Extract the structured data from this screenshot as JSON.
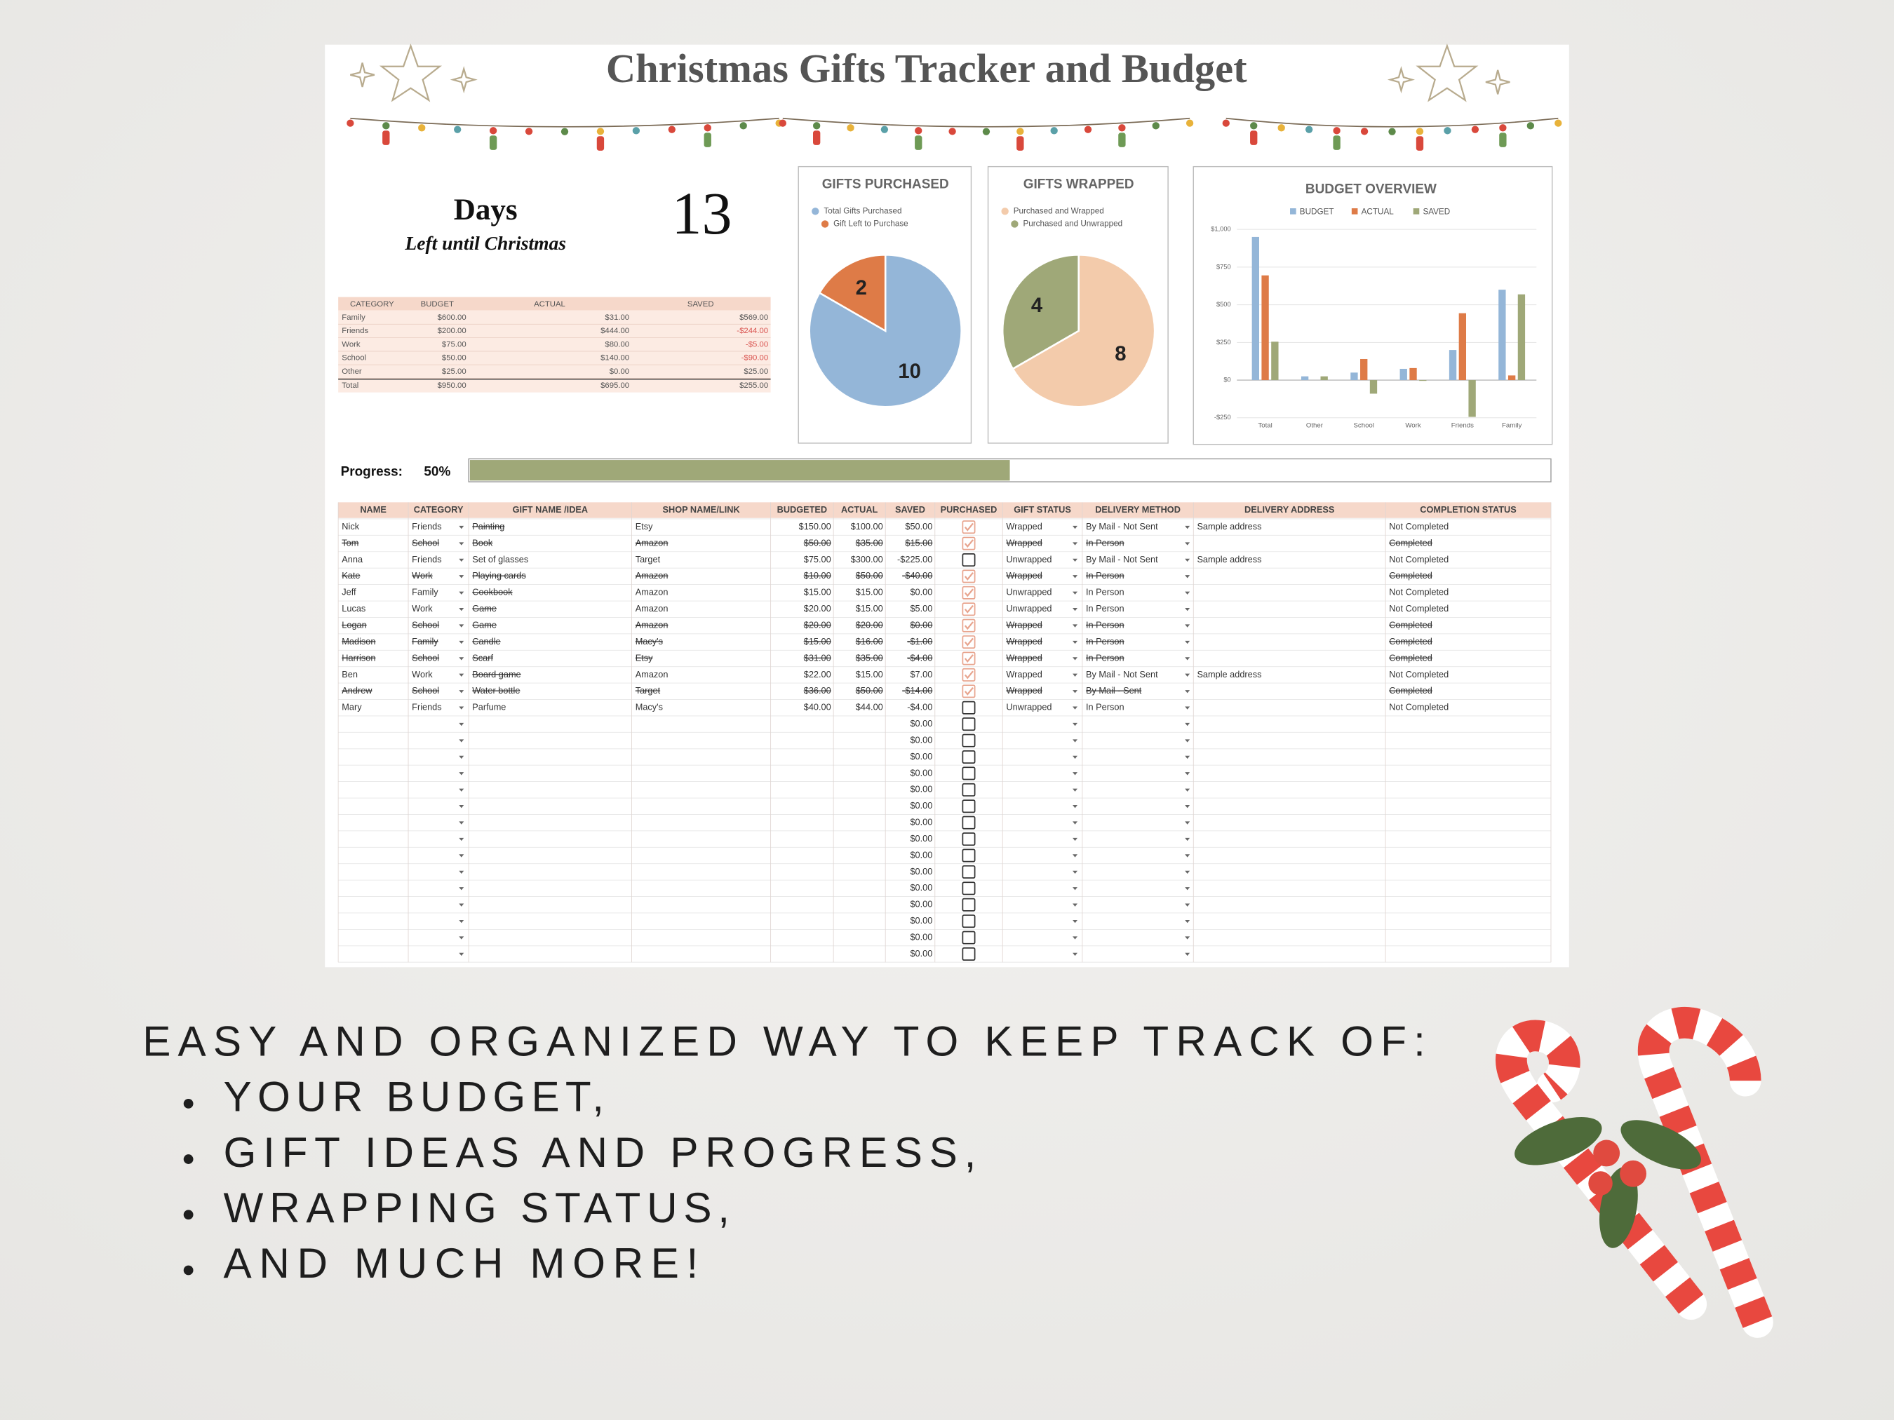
{
  "header": {
    "title": "Christmas Gifts Tracker and Budget"
  },
  "countdown": {
    "label": "Days",
    "caption": "Left until Christmas",
    "days": 13
  },
  "budget_table": {
    "columns": [
      "CATEGORY",
      "BUDGET",
      "ACTUAL",
      "SAVED"
    ],
    "rows": [
      [
        "Family",
        "$600.00",
        "$31.00",
        "$569.00"
      ],
      [
        "Friends",
        "$200.00",
        "$444.00",
        "-$244.00"
      ],
      [
        "Work",
        "$75.00",
        "$80.00",
        "-$5.00"
      ],
      [
        "School",
        "$50.00",
        "$140.00",
        "-$90.00"
      ],
      [
        "Other",
        "$25.00",
        "$0.00",
        "$25.00"
      ]
    ],
    "total": [
      "Total",
      "$950.00",
      "$695.00",
      "$255.00"
    ]
  },
  "chart_data": [
    {
      "type": "pie",
      "title": "GIFTS PURCHASED",
      "categories": [
        "Total Gifts Purchased",
        "Gift Left to Purchase"
      ],
      "values": [
        10,
        2
      ],
      "colors": [
        "#94b6d8",
        "#de7b47"
      ]
    },
    {
      "type": "pie",
      "title": "GIFTS WRAPPED",
      "categories": [
        "Purchased and Wrapped",
        "Purchased and Unwrapped"
      ],
      "values": [
        8,
        4
      ],
      "colors": [
        "#f3cbab",
        "#9fa878"
      ]
    },
    {
      "type": "bar",
      "title": "BUDGET OVERVIEW",
      "categories": [
        "Total",
        "Other",
        "School",
        "Work",
        "Friends",
        "Family"
      ],
      "series": [
        {
          "name": "BUDGET",
          "color": "#94b6d8",
          "values": [
            950,
            25,
            50,
            75,
            200,
            600
          ]
        },
        {
          "name": "ACTUAL",
          "color": "#de7b47",
          "values": [
            695,
            0,
            140,
            80,
            444,
            31
          ]
        },
        {
          "name": "SAVED",
          "color": "#9fa878",
          "values": [
            255,
            25,
            -90,
            -5,
            -244,
            569
          ]
        }
      ],
      "ylim": [
        -250,
        1000
      ],
      "yticks": [
        {
          "value": -250,
          "label": "-$250"
        },
        {
          "value": 0,
          "label": "$0"
        },
        {
          "value": 250,
          "label": "$250"
        },
        {
          "value": 500,
          "label": "$500"
        },
        {
          "value": 750,
          "label": "$750"
        },
        {
          "value": 1000,
          "label": "$1,000"
        }
      ],
      "grid": true,
      "legend": "top"
    }
  ],
  "progress": {
    "label": "Progress:",
    "value": 50,
    "value_label": "50%",
    "color": "#9fa878"
  },
  "gift_table": {
    "columns": [
      "NAME",
      "CATEGORY",
      "GIFT NAME /IDEA",
      "SHOP NAME/LINK",
      "BUDGETED",
      "ACTUAL",
      "SAVED",
      "PURCHASED",
      "GIFT STATUS",
      "DELIVERY METHOD",
      "DELIVERY ADDRESS",
      "COMPLETION STATUS"
    ],
    "rows": [
      {
        "cells": [
          "Nick",
          "Friends",
          "Painting",
          "Etsy",
          "$150.00",
          "$100.00",
          "$50.00",
          true,
          "Wrapped",
          "By Mail - Not Sent",
          "Sample address",
          "Not Completed"
        ],
        "completed": false
      },
      {
        "cells": [
          "Tom",
          "School",
          "Book",
          "Amazon",
          "$50.00",
          "$35.00",
          "$15.00",
          true,
          "Wrapped",
          "In Person",
          null,
          "Completed"
        ],
        "completed": true
      },
      {
        "cells": [
          "Anna",
          "Friends",
          "Set of glasses",
          "Target",
          "$75.00",
          "$300.00",
          "-$225.00",
          false,
          "Unwrapped",
          "By Mail - Not Sent",
          "Sample address",
          "Not Completed"
        ],
        "completed": false
      },
      {
        "cells": [
          "Kate",
          "Work",
          "Playing cards",
          "Amazon",
          "$10.00",
          "$50.00",
          "-$40.00",
          true,
          "Wrapped",
          "In Person",
          null,
          "Completed"
        ],
        "completed": true
      },
      {
        "cells": [
          "Jeff",
          "Family",
          "Cookbook",
          "Amazon",
          "$15.00",
          "$15.00",
          "$0.00",
          true,
          "Unwrapped",
          "In Person",
          null,
          "Not Completed"
        ],
        "completed": false
      },
      {
        "cells": [
          "Lucas",
          "Work",
          "Game",
          "Amazon",
          "$20.00",
          "$15.00",
          "$5.00",
          true,
          "Unwrapped",
          "In Person",
          null,
          "Not Completed"
        ],
        "completed": false
      },
      {
        "cells": [
          "Logan",
          "School",
          "Game",
          "Amazon",
          "$20.00",
          "$20.00",
          "$0.00",
          true,
          "Wrapped",
          "In Person",
          null,
          "Completed"
        ],
        "completed": true
      },
      {
        "cells": [
          "Madison",
          "Family",
          "Candle",
          "Macy's",
          "$15.00",
          "$16.00",
          "-$1.00",
          true,
          "Wrapped",
          "In Person",
          null,
          "Completed"
        ],
        "completed": true
      },
      {
        "cells": [
          "Harrison",
          "School",
          "Scarf",
          "Etsy",
          "$31.00",
          "$35.00",
          "-$4.00",
          true,
          "Wrapped",
          "In Person",
          null,
          "Completed"
        ],
        "completed": true
      },
      {
        "cells": [
          "Ben",
          "Work",
          "Board game",
          "Amazon",
          "$22.00",
          "$15.00",
          "$7.00",
          true,
          "Wrapped",
          "By Mail - Not Sent",
          "Sample address",
          "Not Completed"
        ],
        "completed": false
      },
      {
        "cells": [
          "Andrew",
          "School",
          "Water bottle",
          "Target",
          "$36.00",
          "$50.00",
          "-$14.00",
          true,
          "Wrapped",
          "By Mail - Sent",
          null,
          "Completed"
        ],
        "completed": true
      },
      {
        "cells": [
          "Mary",
          "Friends",
          "Parfume",
          "Macy's",
          "$40.00",
          "$44.00",
          "-$4.00",
          false,
          "Unwrapped",
          "In Person",
          null,
          "Not Completed"
        ],
        "completed": false
      }
    ],
    "empty_rows": [
      {
        "saved": "$0.00",
        "purchased": false
      },
      {
        "saved": "$0.00",
        "purchased": false
      },
      {
        "saved": "$0.00",
        "purchased": false
      },
      {
        "saved": "$0.00",
        "purchased": false
      },
      {
        "saved": "$0.00",
        "purchased": false
      },
      {
        "saved": "$0.00",
        "purchased": false
      },
      {
        "saved": "$0.00",
        "purchased": false
      },
      {
        "saved": "$0.00",
        "purchased": false
      },
      {
        "saved": "$0.00",
        "purchased": false
      },
      {
        "saved": "$0.00",
        "purchased": false
      },
      {
        "saved": "$0.00",
        "purchased": false
      },
      {
        "saved": "$0.00",
        "purchased": false
      },
      {
        "saved": "$0.00",
        "purchased": false
      },
      {
        "saved": "$0.00",
        "purchased": false
      },
      {
        "saved": "$0.00",
        "purchased": false
      }
    ]
  },
  "promo": {
    "heading": "EASY AND ORGANIZED WAY TO KEEP TRACK OF:",
    "bullets": [
      "YOUR BUDGET,",
      "GIFT IDEAS AND PROGRESS,",
      "WRAPPING STATUS,",
      "AND MUCH MORE!"
    ]
  }
}
